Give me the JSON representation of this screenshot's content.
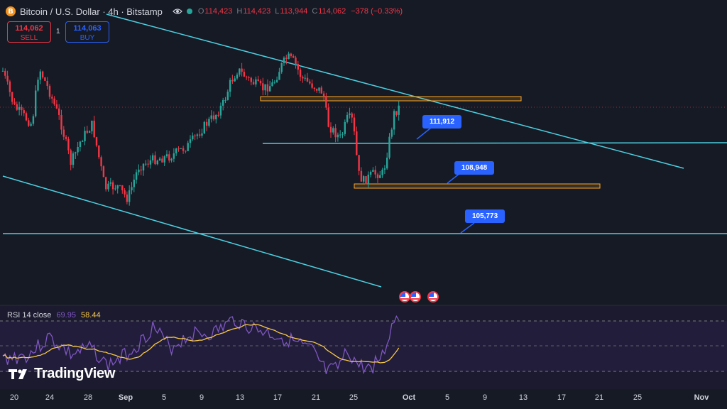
{
  "header": {
    "icon_letter": "B",
    "symbol": "Bitcoin / U.S. Dollar · 4h · Bitstamp",
    "ohlc": [
      {
        "k": "O",
        "v": "114,423"
      },
      {
        "k": "H",
        "v": "114,423"
      },
      {
        "k": "L",
        "v": "113,944"
      },
      {
        "k": "C",
        "v": "114,062"
      }
    ],
    "change": "−378 (−0.33%)"
  },
  "trade": {
    "sell_price": "114,062",
    "sell_label": "SELL",
    "spread": "1",
    "buy_price": "114,063",
    "buy_label": "BUY"
  },
  "annotations": {
    "label_1": "111,912",
    "label_2": "108,948",
    "label_3": "105,773"
  },
  "rsi": {
    "name": "RSI 14 close",
    "value": "69.95",
    "ma": "58.44"
  },
  "brand": "TradingView",
  "xaxis": [
    "20",
    "24",
    "28",
    "Sep",
    "5",
    "9",
    "13",
    "17",
    "21",
    "25",
    "Oct",
    "5",
    "9",
    "13",
    "17",
    "21",
    "25",
    "Nov"
  ],
  "colors": {
    "up": "#26a69a",
    "down": "#f23645",
    "line": "#4dd0e1",
    "zone": "#ffa726",
    "rsi": "#7e57c2",
    "rsi_ma": "#f7c948"
  }
}
